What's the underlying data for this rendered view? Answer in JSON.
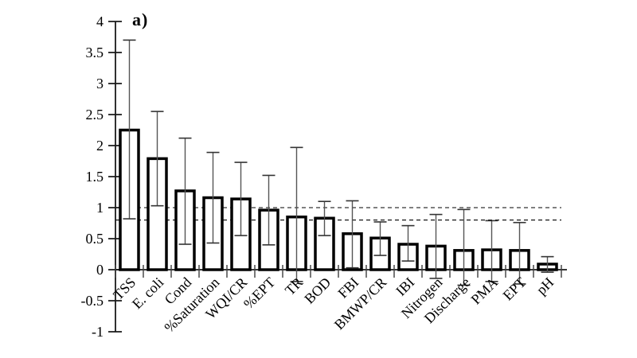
{
  "figure": {
    "panel_label": "a)",
    "background": "#ffffff",
    "colors": {
      "bar_fill": "#ffffff",
      "bar_stroke": "#000000",
      "error_line": "#555555",
      "error_cap": "#333333",
      "axis": "#1a1a1a",
      "tick": "#3d3d3d",
      "reference_line": "#000000",
      "text": "#000000"
    }
  },
  "chart_data": {
    "type": "bar",
    "title": "a)",
    "xlabel": "",
    "ylabel": "",
    "grid": false,
    "legend_position": "none",
    "ylim": [
      -1,
      4
    ],
    "ytick_values": [
      4,
      3.5,
      3,
      2.5,
      2,
      1.5,
      1,
      0.5,
      0,
      -0.5,
      -1
    ],
    "ytick_labels": [
      "4",
      "3.5",
      "3",
      "2.5",
      "2",
      "1.5",
      "1",
      "0.5",
      "0",
      "-0.5",
      "-1"
    ],
    "reference_lines": [
      1.0,
      0.8
    ],
    "categories": [
      "TSS",
      "E. coli",
      "Cond",
      "%Saturation",
      "WQI/CR",
      "%EPT",
      "TR",
      "BOD",
      "FBI",
      "BMWP/CR",
      "IBI",
      "Nitrogen",
      "Discharge",
      "PMA",
      "EPT",
      "pH"
    ],
    "values": [
      2.25,
      1.79,
      1.27,
      1.16,
      1.14,
      0.96,
      0.85,
      0.83,
      0.58,
      0.51,
      0.41,
      0.38,
      0.31,
      0.32,
      0.31,
      0.09
    ],
    "error_bars": {
      "high": [
        3.7,
        2.55,
        2.12,
        1.89,
        1.73,
        1.52,
        1.97,
        1.1,
        1.11,
        0.77,
        0.71,
        0.89,
        0.97,
        0.79,
        0.76,
        0.21
      ],
      "low": [
        0.82,
        1.03,
        0.41,
        0.43,
        0.55,
        0.4,
        -0.19,
        0.55,
        0.03,
        0.23,
        0.14,
        -0.14,
        -0.25,
        -0.19,
        -0.23,
        -0.04
      ]
    },
    "error_style": "whisker-caps",
    "bar_outline_only": true
  }
}
